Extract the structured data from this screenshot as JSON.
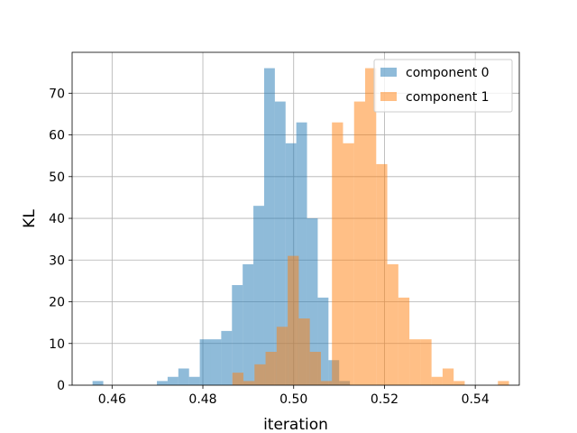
{
  "chart_data": {
    "type": "histogram",
    "xlabel": "iteration",
    "ylabel": "KL",
    "xlim": [
      0.4512,
      0.5497
    ],
    "ylim": [
      0,
      79.8
    ],
    "grid": true,
    "legend_position": "top-right",
    "x_ticks": [
      {
        "value": 0.46,
        "label": "0.46"
      },
      {
        "value": 0.48,
        "label": "0.48"
      },
      {
        "value": 0.5,
        "label": "0.50"
      },
      {
        "value": 0.52,
        "label": "0.52"
      },
      {
        "value": 0.54,
        "label": "0.54"
      }
    ],
    "y_ticks": [
      {
        "value": 0,
        "label": "0"
      },
      {
        "value": 10,
        "label": "10"
      },
      {
        "value": 20,
        "label": "20"
      },
      {
        "value": 30,
        "label": "30"
      },
      {
        "value": 40,
        "label": "40"
      },
      {
        "value": 50,
        "label": "50"
      },
      {
        "value": 60,
        "label": "60"
      },
      {
        "value": 70,
        "label": "70"
      }
    ],
    "series": [
      {
        "name": "component 0",
        "color": "#1f77b4",
        "alpha": 0.5,
        "bin_start": 0.4557,
        "bin_width": 0.002362,
        "counts": [
          1,
          0,
          0,
          0,
          0,
          0,
          1,
          2,
          4,
          2,
          11,
          11,
          13,
          24,
          29,
          43,
          76,
          68,
          58,
          63,
          40,
          21,
          6,
          1
        ]
      },
      {
        "name": "component 1",
        "color": "#ff7f0e",
        "alpha": 0.5,
        "bin_start": 0.4865,
        "bin_width": 0.002437,
        "counts": [
          3,
          1,
          5,
          8,
          14,
          31,
          16,
          8,
          1,
          63,
          58,
          68,
          76,
          53,
          29,
          21,
          11,
          11,
          2,
          4,
          1,
          0,
          0,
          0,
          1
        ]
      }
    ]
  }
}
